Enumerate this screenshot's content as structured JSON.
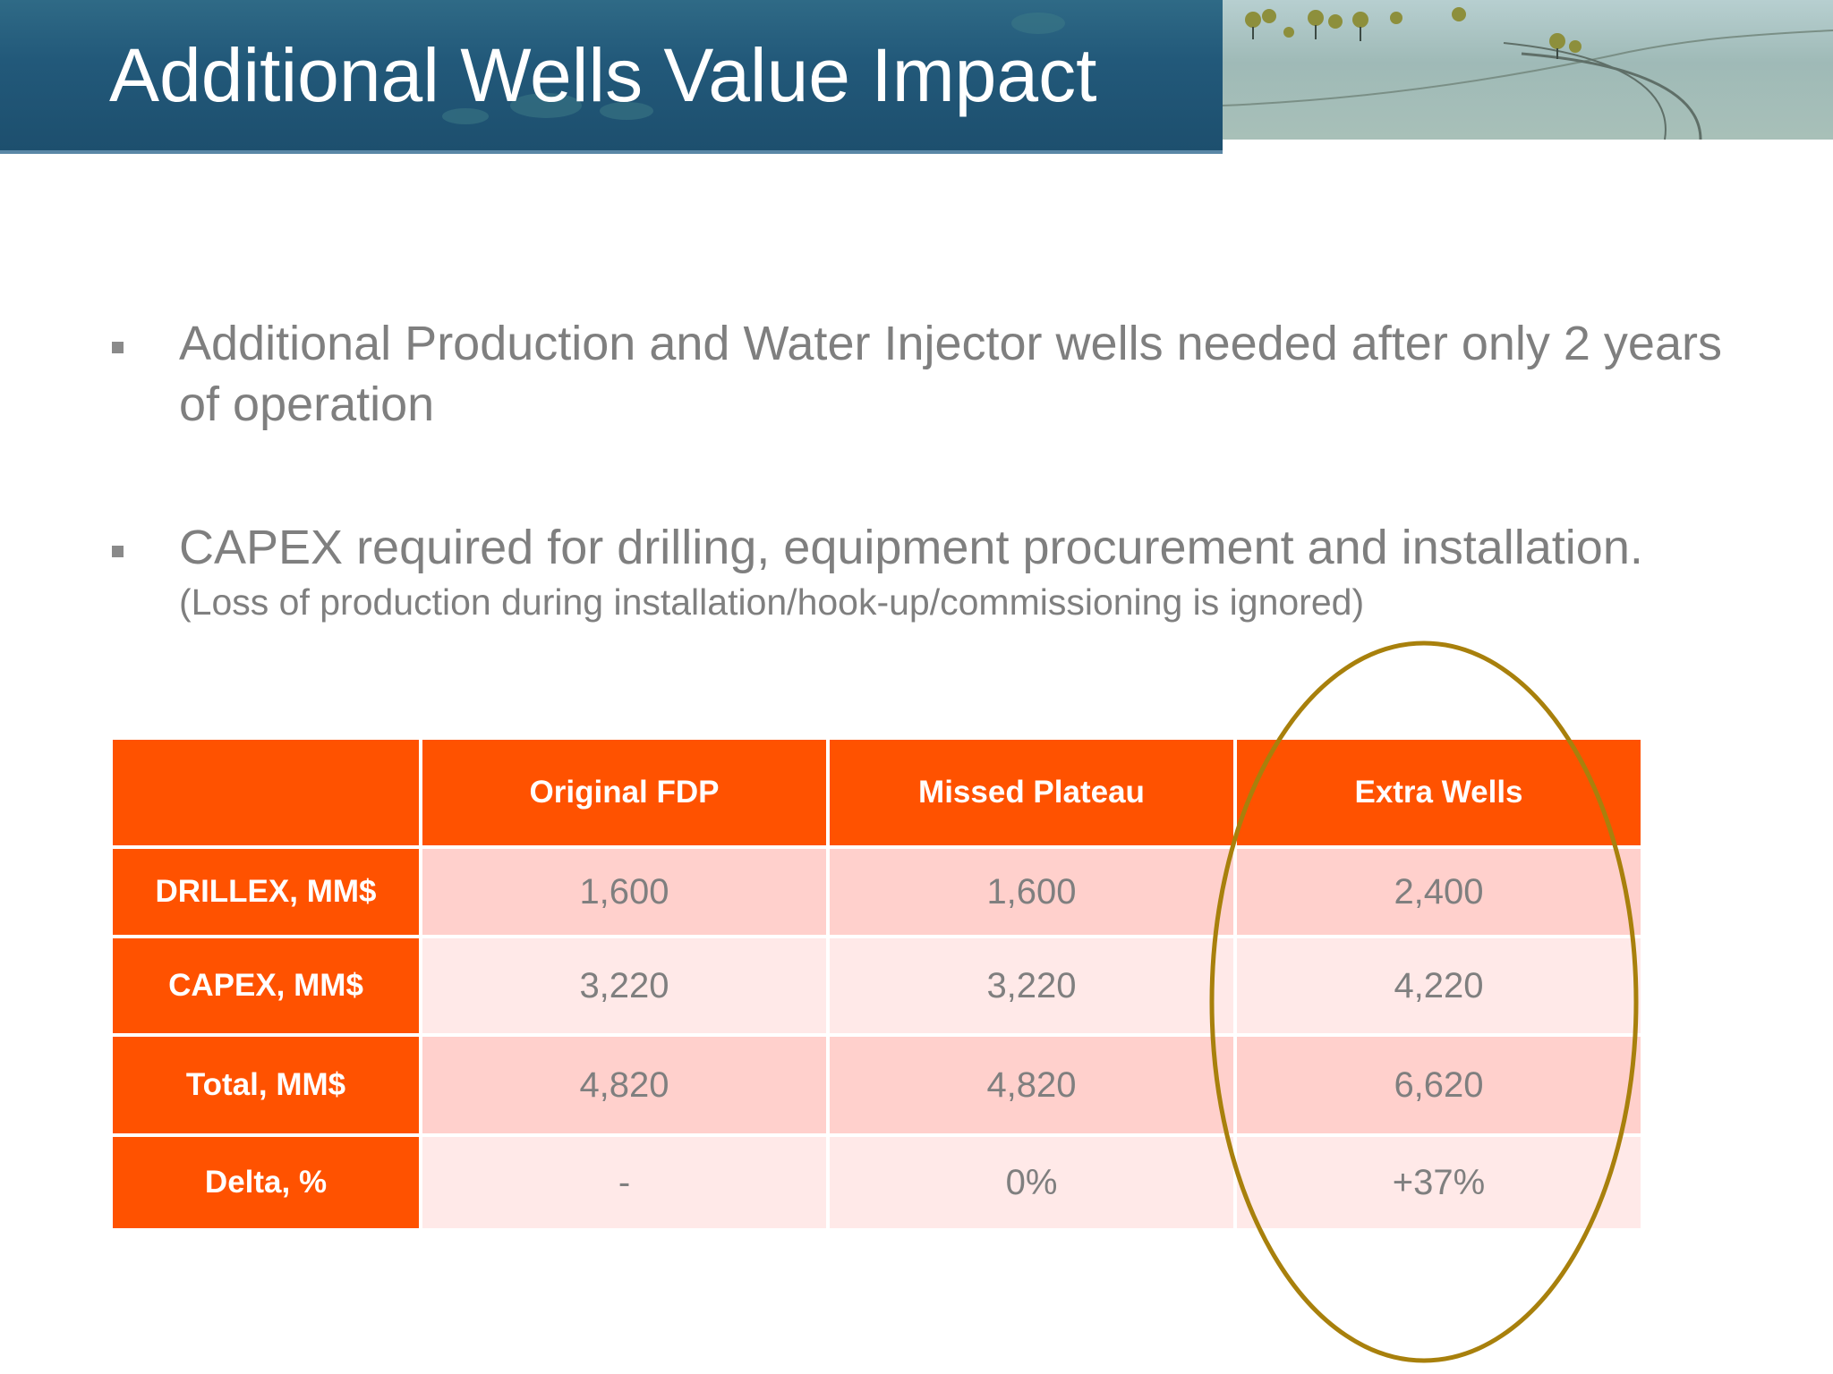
{
  "slide": {
    "title": "Additional Wells Value Impact"
  },
  "bullets": [
    {
      "text": "Additional Production and Water Injector wells needed after only 2 years of operation"
    },
    {
      "text": "CAPEX required for drilling, equipment procurement and installation.",
      "subtext": "(Loss of production during installation/hook-up/commissioning is ignored)"
    }
  ],
  "table": {
    "columns": [
      "",
      "Original FDP",
      "Missed Plateau",
      "Extra Wells"
    ],
    "rows": [
      {
        "label": "DRILLEX, MM$",
        "values": [
          "1,600",
          "1,600",
          "2,400"
        ]
      },
      {
        "label": "CAPEX, MM$",
        "values": [
          "3,220",
          "3,220",
          "4,220"
        ]
      },
      {
        "label": "Total, MM$",
        "values": [
          "4,820",
          "4,820",
          "6,620"
        ]
      },
      {
        "label": "Delta, %",
        "values": [
          "-",
          "0%",
          "+37%"
        ]
      }
    ],
    "header_color": "#ff5200",
    "row_color_dark": "#ffd0cc",
    "row_color_light": "#ffe9e8"
  },
  "highlight": {
    "shape": "ellipse",
    "target_column": "Extra Wells",
    "color": "#a8800c"
  }
}
